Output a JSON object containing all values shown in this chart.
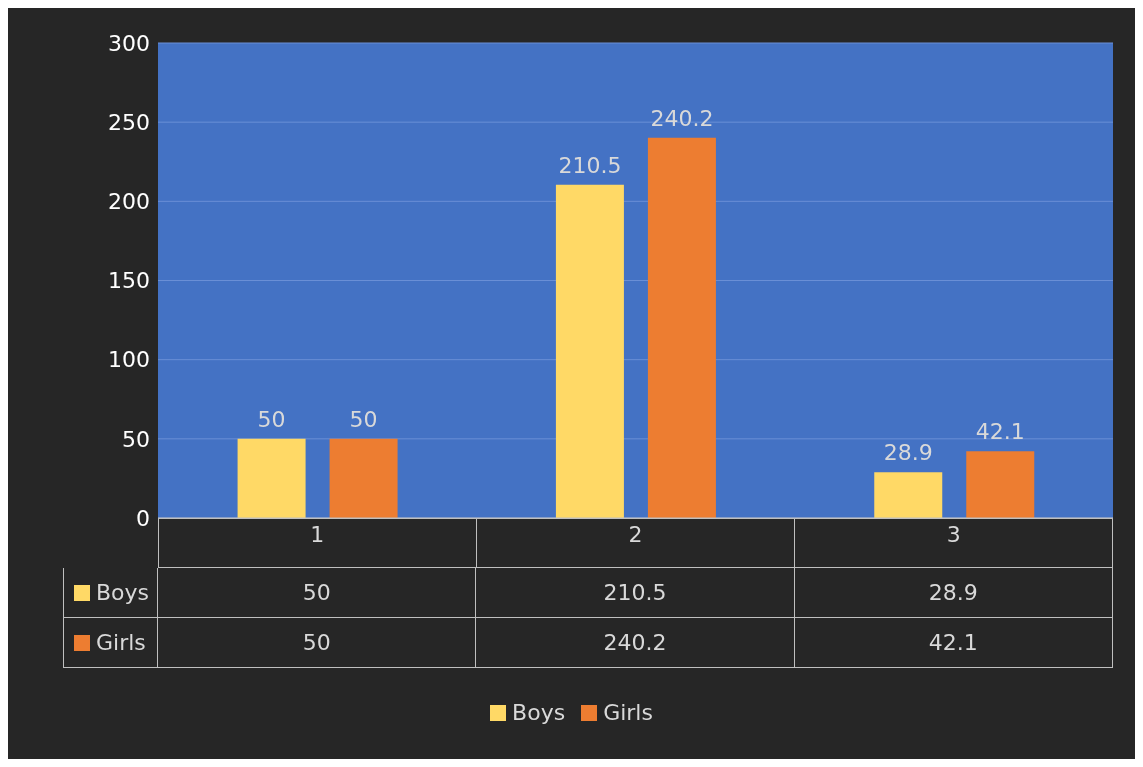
{
  "chart_data": {
    "type": "bar",
    "categories": [
      "1",
      "2",
      "3"
    ],
    "series": [
      {
        "name": "Boys",
        "color": "#ffd966",
        "values": [
          50,
          210.5,
          28.9
        ]
      },
      {
        "name": "Girls",
        "color": "#ed7d31",
        "values": [
          50,
          240.2,
          42.1
        ]
      }
    ],
    "annotations": [
      "50",
      "210.5",
      "28.9",
      "50",
      "240.2",
      "42.1"
    ],
    "ylim": [
      0,
      300
    ],
    "yticks": [
      0,
      50,
      100,
      150,
      200,
      250,
      300
    ],
    "grid": "y",
    "data_labels": true,
    "legend": "bottom"
  }
}
